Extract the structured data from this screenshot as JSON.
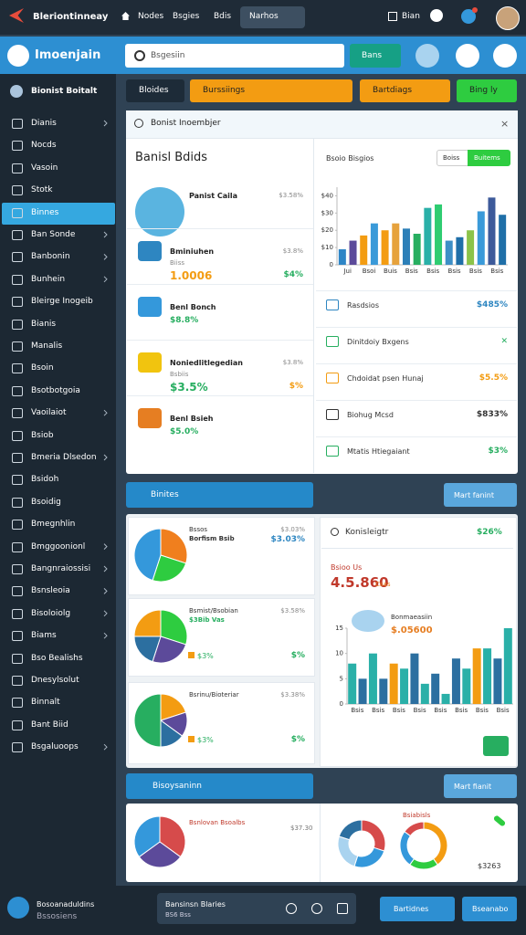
{
  "top_bar": {
    "brand": "Bleriontinneay",
    "tabs": [
      "Nodes",
      "Bsgies",
      "Bdis"
    ],
    "search": "Narhos",
    "menu": "Bian"
  },
  "header": {
    "logo": "Imoenjain",
    "search_placeholder": "Bsgesiin",
    "search_button": "Bans"
  },
  "sidebar": {
    "title": "Bionist Boitalt",
    "items": [
      {
        "label": "Dianis",
        "chevron": true
      },
      {
        "label": "Nocds",
        "chevron": false
      },
      {
        "label": "Vasoin",
        "chevron": false
      },
      {
        "label": "Stotk",
        "chevron": false
      },
      {
        "label": "Binnes",
        "chevron": false,
        "active": true
      },
      {
        "label": "Ban Sonde",
        "chevron": true
      },
      {
        "label": "Banbonin",
        "chevron": true
      },
      {
        "label": "Bunhein",
        "chevron": true
      },
      {
        "label": "Bleirge Inogeib",
        "chevron": false
      },
      {
        "label": "Bianis",
        "chevron": false
      },
      {
        "label": "Manalis",
        "chevron": false
      },
      {
        "label": "Bsoin",
        "chevron": false
      },
      {
        "label": "Bsotbotgoia",
        "chevron": false
      },
      {
        "label": "Vaoilaiot",
        "chevron": true
      },
      {
        "label": "Bsiob",
        "chevron": false
      },
      {
        "label": "Bmeria Dlsedon",
        "chevron": true
      },
      {
        "label": "Bsidoh",
        "chevron": false
      },
      {
        "label": "Bsoidig",
        "chevron": false
      },
      {
        "label": "Bmegnhlin",
        "chevron": false
      },
      {
        "label": "Bmggoonionl",
        "chevron": true
      },
      {
        "label": "Bangnraiossisi",
        "chevron": true
      },
      {
        "label": "Bsnsleoia",
        "chevron": true
      },
      {
        "label": "Bisoloiolg",
        "chevron": true
      },
      {
        "label": "Biams",
        "chevron": true
      },
      {
        "label": "Bso Bealishs",
        "chevron": false
      },
      {
        "label": "Dnesylsolut",
        "chevron": false
      },
      {
        "label": "Binnalt",
        "chevron": false
      },
      {
        "label": "Bant Biid",
        "chevron": false
      },
      {
        "label": "Bsgaluoops",
        "chevron": true
      }
    ]
  },
  "actions": [
    {
      "label": "Bloides",
      "color": "#1d2b38"
    },
    {
      "label": "Burssiings",
      "color": "#f39c12"
    },
    {
      "label": "Bartdiags",
      "color": "#f39c12"
    },
    {
      "label": "Bing ly",
      "color": "#2ecc40"
    }
  ],
  "panel1": {
    "title": "Bonist Inoembjer",
    "left": {
      "title": "Banisl Bdids",
      "items": [
        {
          "name": "Panist Caila",
          "side": "$3.58%",
          "icon": "#5ab4e0"
        },
        {
          "name": "Bminiuhen",
          "sub": "Biiss",
          "value": "1.0006",
          "value_color": "#f39c12",
          "side": "$3.8%",
          "side2": "$4%",
          "side2_color": "#27ae60",
          "icon": "#2e86c1"
        },
        {
          "name": "Benl Bonch",
          "value": "$8.8%",
          "value_color": "#27ae60",
          "icon": "#3498db"
        },
        {
          "name": "Noniedlitlegedian",
          "sub": "Bsbiis",
          "value": "$3.5%",
          "value_color": "#27ae60",
          "side": "$3.8%",
          "side2": "$%",
          "side2_color": "#f39c12",
          "icon": "#f1c40f"
        },
        {
          "name": "Benl Bsieh",
          "value": "$5.0%",
          "value_color": "#27ae60",
          "icon": "#e67e22"
        }
      ]
    },
    "right": {
      "title": "Bsoio Bisgios",
      "toggles": [
        "Boiss",
        "Buitems"
      ],
      "chart": {
        "ylim": [
          0,
          45
        ],
        "yticks": [
          {
            "value": 40,
            "label": "$40"
          },
          {
            "value": 30,
            "label": "$30"
          },
          {
            "value": 20,
            "label": "$20"
          },
          {
            "value": 10,
            "label": "$10"
          },
          0
        ],
        "xlabels": [
          "Jui",
          "Bsoi",
          "Buis",
          "Bsis",
          "Bsis",
          "Bsis",
          "Bsis",
          "Bsis"
        ],
        "bars": [
          {
            "color": "#2f86c6",
            "value": 9
          },
          {
            "color": "#5c4a9a",
            "value": 14
          },
          {
            "color": "#f39c12",
            "value": 17
          },
          {
            "color": "#3a9ad9",
            "value": 24
          },
          {
            "color": "#f39c12",
            "value": 20
          },
          {
            "color": "#e6a23c",
            "value": 24
          },
          {
            "color": "#2c7fb8",
            "value": 21
          },
          {
            "color": "#27ae60",
            "value": 18
          },
          {
            "color": "#2ab0a8",
            "value": 33
          },
          {
            "color": "#2ecc71",
            "value": 35
          },
          {
            "color": "#3d8fc6",
            "value": 14
          },
          {
            "color": "#1f6fa8",
            "value": 16
          },
          {
            "color": "#8bc34a",
            "value": 20
          },
          {
            "color": "#3a9ad9",
            "value": 31
          },
          {
            "color": "#3d5a9a",
            "value": 39
          },
          {
            "color": "#1f6fa8",
            "value": 29
          }
        ]
      },
      "rows": [
        {
          "label": "Rasdsios",
          "value": "$485%",
          "color": "#2e86c1"
        },
        {
          "label": "Dinitdoiy Bxgens",
          "value": "✕",
          "color": "#27ae60"
        },
        {
          "label": "Chdoidat psen Hunaj",
          "value": "$5.5%",
          "color": "#f39c12"
        },
        {
          "label": "Biohug Mcsd",
          "value": "$833%",
          "color": "#333333"
        },
        {
          "label": "Mtatis Htiegaiant",
          "value": "$3%",
          "color": "#27ae60"
        }
      ]
    }
  },
  "band1": {
    "title": "Binites",
    "button": "Mart fanint"
  },
  "panel2": {
    "cards": [
      {
        "title": "Bssos",
        "sub": "Borfism Bsib",
        "side": "$3.03%",
        "side2": "$3.03%",
        "slices": [
          {
            "color": "#f07f1e",
            "value": 30
          },
          {
            "color": "#2ecc40",
            "value": 25
          },
          {
            "color": "#3498db",
            "value": 45
          }
        ]
      },
      {
        "title": "Bsmist/Bsobian",
        "sub": "$3Bib Vas",
        "side": "$3.58%",
        "pct": "$3%",
        "side2": "$%",
        "slices": [
          {
            "color": "#2ecc40",
            "value": 30
          },
          {
            "color": "#5c4a9a",
            "value": 25
          },
          {
            "color": "#2c6fa0",
            "value": 20
          },
          {
            "color": "#f39c12",
            "value": 25
          }
        ]
      },
      {
        "title": "Bsrinu/Bioteriar",
        "side": "$3.38%",
        "pct": "$3%",
        "side2": "$%",
        "slices": [
          {
            "color": "#f39c12",
            "value": 20
          },
          {
            "color": "#5c4a9a",
            "value": 15
          },
          {
            "color": "#2c6fa0",
            "value": 15
          },
          {
            "color": "#27ae60",
            "value": 50
          }
        ]
      }
    ],
    "right": {
      "title": "Konisleigtr",
      "badge": "$26%",
      "kicker": "Bsioo Us",
      "big": "4.5.860",
      "note": "Csas",
      "name": "Bonmaeasiin",
      "amount": "$.05600",
      "chart": {
        "ylim": [
          0,
          15
        ],
        "yticks": [
          15,
          10,
          5,
          0
        ],
        "xlabels": [
          "Bsis",
          "Bsis",
          "Bsis",
          "Bsis",
          "Bsis",
          "Bsis",
          "Bsis",
          "Bsis"
        ],
        "bars": [
          {
            "color": "#2ab0a8",
            "value": 8
          },
          {
            "color": "#2c6fa0",
            "value": 5
          },
          {
            "color": "#2ab0a8",
            "value": 10
          },
          {
            "color": "#2c6fa0",
            "value": 5
          },
          {
            "color": "#f39c12",
            "value": 8
          },
          {
            "color": "#2ab0a8",
            "value": 7
          },
          {
            "color": "#2c6fa0",
            "value": 10
          },
          {
            "color": "#2ab0a8",
            "value": 4
          },
          {
            "color": "#2c6fa0",
            "value": 6
          },
          {
            "color": "#2ab0a8",
            "value": 2
          },
          {
            "color": "#2c6fa0",
            "value": 9
          },
          {
            "color": "#2ab0a8",
            "value": 7
          },
          {
            "color": "#f39c12",
            "value": 11
          },
          {
            "color": "#2ab0a8",
            "value": 11
          },
          {
            "color": "#2c6fa0",
            "value": 9
          },
          {
            "color": "#2ab0a8",
            "value": 15
          }
        ]
      }
    }
  },
  "band2": {
    "title": "Bisoysaninn",
    "button": "Mart fianit"
  },
  "panel3": {
    "title": "Bsnlovan Bsoalbs",
    "side": "$37.30",
    "label": "Bsiabisls",
    "total": "$3263",
    "pie": [
      {
        "color": "#d64b4b",
        "value": 35
      },
      {
        "color": "#5c4a9a",
        "value": 30
      },
      {
        "color": "#3498db",
        "value": 35
      }
    ],
    "donut1": [
      {
        "color": "#d64b4b",
        "value": 30
      },
      {
        "color": "#3498db",
        "value": 25
      },
      {
        "color": "#a9d3ef",
        "value": 25
      },
      {
        "color": "#2c6fa0",
        "value": 20
      }
    ],
    "donut2": [
      {
        "color": "#f39c12",
        "value": 40
      },
      {
        "color": "#2ecc40",
        "value": 20
      },
      {
        "color": "#3498db",
        "value": 25
      },
      {
        "color": "#d64b4b",
        "value": 15
      }
    ]
  },
  "footer": {
    "user": "Bosoanaduldins",
    "role": "Bssosiens",
    "input_title": "Bansinsn Blaries",
    "input_sub": "BS6 Bss",
    "buttons": [
      "Bartidnes",
      "Bseanabo"
    ]
  }
}
